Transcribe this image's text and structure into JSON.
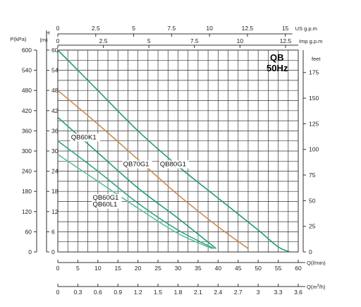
{
  "chart_data": {
    "type": "line",
    "title": "QB",
    "subtitle": "50Hz",
    "grid": true,
    "axes": {
      "x_main": {
        "label": "Q(l/min)",
        "min": 0,
        "max": 60,
        "ticks": [
          0,
          5,
          10,
          15,
          20,
          25,
          30,
          35,
          40,
          45,
          50,
          55,
          60
        ]
      },
      "x_m3h": {
        "label": "Q(m³/h)",
        "unit_base": "Q",
        "unit_sup": "3",
        "unit_tail": "/h)",
        "unit_prefix": "Q(m",
        "ticks": [
          "0",
          "0.3",
          "0.6",
          "0.9",
          "1.2",
          "1.5",
          "1.8",
          "2.1",
          "2.4",
          "2.7",
          "3",
          "3.3",
          "3.6"
        ]
      },
      "x_us": {
        "label": "US g.p.m",
        "ticks": [
          "0",
          "2.5",
          "5",
          "7.5",
          "10",
          "12.5",
          "15"
        ],
        "values": [
          0,
          2.5,
          5,
          7.5,
          10,
          12.5,
          15
        ]
      },
      "x_imp": {
        "label": "Imp g.p.m",
        "ticks": [
          "0",
          "2.5",
          "5",
          "7.5",
          "10",
          "12.5"
        ],
        "values": [
          0,
          2.5,
          5,
          7.5,
          10,
          12.5
        ]
      },
      "y_main": {
        "label": "H (m)",
        "label_top": "H",
        "label_unit": "(m)",
        "min": 0,
        "max": 60,
        "ticks": [
          0,
          6,
          12,
          18,
          24,
          30,
          36,
          42,
          48,
          54,
          60
        ]
      },
      "y_kpa": {
        "label": "P(kPa)",
        "ticks": [
          "0",
          "60",
          "120",
          "180",
          "240",
          "300",
          "360",
          "420",
          "480",
          "540",
          "600"
        ]
      },
      "y_feet": {
        "label": "feet",
        "ticks": [
          "0",
          "25",
          "50",
          "75",
          "100",
          "125",
          "150",
          "175"
        ],
        "values": [
          0,
          25,
          50,
          75,
          100,
          125,
          150,
          175
        ]
      }
    },
    "series": [
      {
        "name": "QB80G1",
        "color": "#1e9a7e",
        "x": [
          0,
          10,
          20,
          30,
          40,
          50,
          55,
          58
        ],
        "y": [
          60,
          48,
          36,
          25.5,
          16,
          6.5,
          1.5,
          0
        ]
      },
      {
        "name": "QB70G1",
        "color": "#cc8a4e",
        "x": [
          0,
          10,
          20,
          30,
          40,
          47.5
        ],
        "y": [
          48,
          38,
          27.5,
          17,
          7.5,
          1
        ]
      },
      {
        "name": "QB60K1",
        "color": "#1e9a7e",
        "x": [
          0,
          10,
          20,
          30,
          39.5
        ],
        "y": [
          40,
          29.5,
          19,
          10,
          1
        ]
      },
      {
        "name": "QB60G1",
        "color": "#2aa58a",
        "x": [
          0,
          10,
          20,
          30,
          39
        ],
        "y": [
          33,
          24,
          14.5,
          6.5,
          1
        ]
      },
      {
        "name": "QB60L1",
        "color": "#5cbf9f",
        "x": [
          0,
          10,
          20,
          30,
          38.5
        ],
        "y": [
          29,
          21,
          13,
          5.5,
          1
        ]
      }
    ],
    "annotations": [
      {
        "text": "QB60K1",
        "x": 3.3,
        "y": 33.5
      },
      {
        "text": "QB70G1",
        "x": 16.3,
        "y": 25.5
      },
      {
        "text": "QB80G1",
        "x": 25.5,
        "y": 25.5
      },
      {
        "text": "QB60G1",
        "x": 8.7,
        "y": 15.5
      },
      {
        "text": "QB60L1",
        "x": 8.7,
        "y": 13.5
      }
    ]
  }
}
